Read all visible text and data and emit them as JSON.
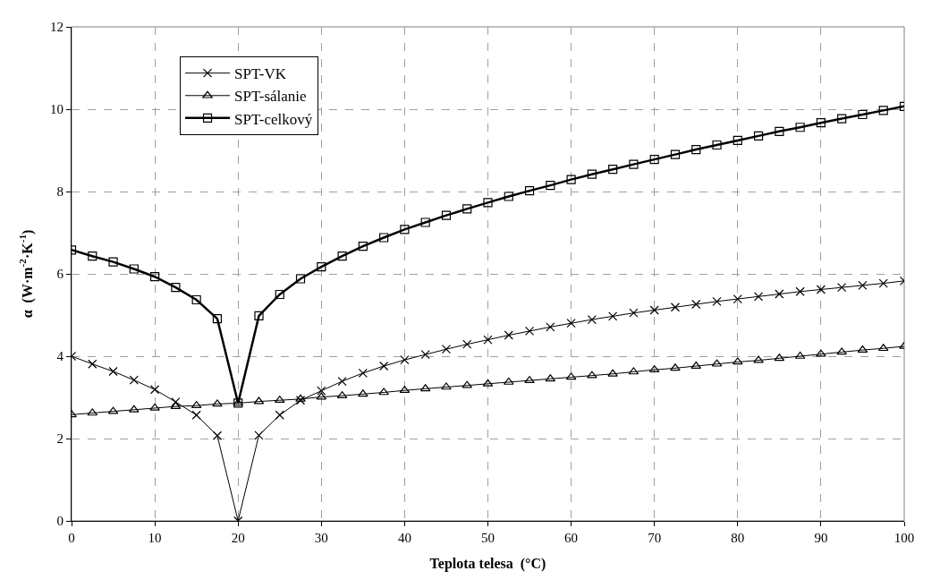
{
  "chart_data": {
    "type": "line",
    "xlabel": "Teplota telesa  (°C)",
    "ylabel": "α  (W·m$^{-2}$·K$^{-1}$)",
    "x": [
      0,
      2.5,
      5,
      7.5,
      10,
      12.5,
      15,
      17.5,
      20,
      22.5,
      25,
      27.5,
      30,
      32.5,
      35,
      37.5,
      40,
      42.5,
      45,
      47.5,
      50,
      52.5,
      55,
      57.5,
      60,
      62.5,
      65,
      67.5,
      70,
      72.5,
      75,
      77.5,
      80,
      82.5,
      85,
      87.5,
      90,
      92.5,
      95,
      97.5,
      100
    ],
    "xlim": [
      0,
      100
    ],
    "xticks": [
      0,
      10,
      20,
      30,
      40,
      50,
      60,
      70,
      80,
      90,
      100
    ],
    "ylim": [
      0,
      12
    ],
    "yticks": [
      0,
      2,
      4,
      6,
      8,
      10,
      12
    ],
    "grid": true,
    "legend": "top left",
    "series": [
      {
        "name": "SPT-VK",
        "color": "#000000",
        "marker": "cross",
        "values": [
          4.0,
          3.81,
          3.63,
          3.42,
          3.19,
          2.89,
          2.57,
          2.07,
          0,
          2.08,
          2.57,
          2.93,
          3.16,
          3.39,
          3.59,
          3.76,
          3.91,
          4.04,
          4.17,
          4.29,
          4.4,
          4.51,
          4.61,
          4.71,
          4.8,
          4.89,
          4.97,
          5.05,
          5.12,
          5.19,
          5.26,
          5.33,
          5.39,
          5.45,
          5.51,
          5.57,
          5.62,
          5.67,
          5.72,
          5.77,
          5.83
        ]
      },
      {
        "name": "SPT-sálanie",
        "color": "#000000",
        "marker": "triangle",
        "values": [
          2.58,
          2.62,
          2.66,
          2.7,
          2.74,
          2.78,
          2.8,
          2.84,
          2.86,
          2.9,
          2.93,
          2.96,
          3.01,
          3.04,
          3.08,
          3.12,
          3.17,
          3.21,
          3.25,
          3.29,
          3.33,
          3.37,
          3.41,
          3.45,
          3.49,
          3.53,
          3.57,
          3.62,
          3.67,
          3.71,
          3.76,
          3.81,
          3.86,
          3.9,
          3.95,
          4.0,
          4.05,
          4.1,
          4.15,
          4.19,
          4.24
        ]
      },
      {
        "name": "SPT-celkový",
        "color": "#000000",
        "marker": "square",
        "values": [
          6.58,
          6.43,
          6.29,
          6.12,
          5.93,
          5.67,
          5.37,
          4.91,
          2.86,
          4.98,
          5.5,
          5.88,
          6.17,
          6.43,
          6.67,
          6.88,
          7.08,
          7.25,
          7.42,
          7.58,
          7.73,
          7.88,
          8.02,
          8.15,
          8.29,
          8.42,
          8.54,
          8.66,
          8.78,
          8.9,
          9.02,
          9.13,
          9.24,
          9.35,
          9.46,
          9.56,
          9.67,
          9.77,
          9.87,
          9.97,
          10.07
        ]
      }
    ]
  }
}
